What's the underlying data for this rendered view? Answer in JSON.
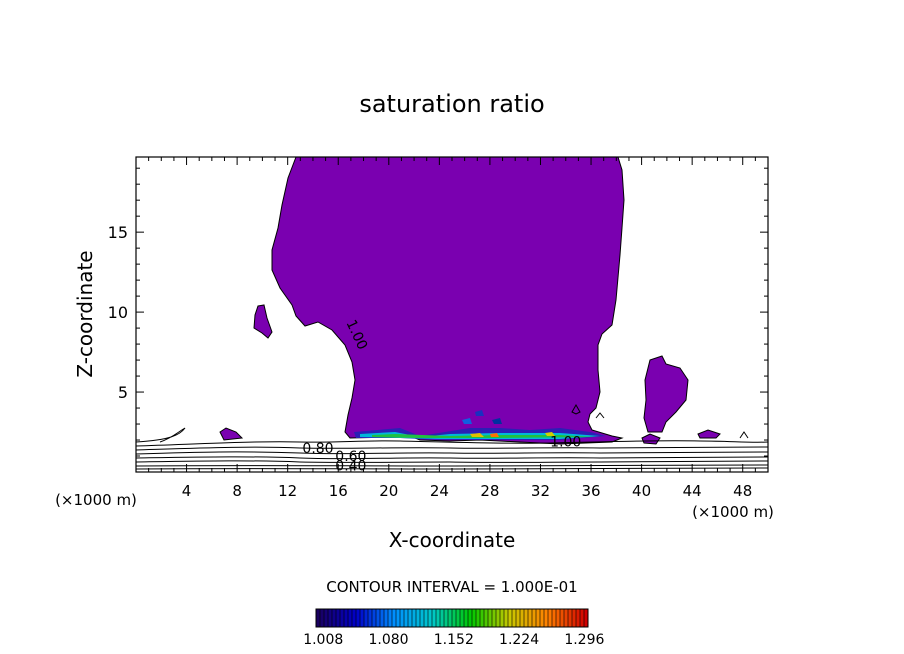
{
  "chart_data": {
    "type": "contour",
    "title": "saturation ratio",
    "xlabel": "X-coordinate",
    "ylabel": "Z-coordinate",
    "x_unit": "(×1000 m)",
    "y_unit": "(×1000 m)",
    "xlim": [
      0,
      50
    ],
    "ylim": [
      0,
      19.7
    ],
    "x_ticks": [
      4,
      8,
      12,
      16,
      20,
      24,
      28,
      32,
      36,
      40,
      44,
      48
    ],
    "y_ticks": [
      5,
      10,
      15
    ],
    "contour_labels": [
      {
        "value": "1.00",
        "x": 17.5,
        "z": 8.6
      },
      {
        "value": "0.80",
        "x": 14.4,
        "z": 1.5
      },
      {
        "value": "0.60",
        "x": 17.0,
        "z": 1.0
      },
      {
        "value": "0.40",
        "x": 17.0,
        "z": 0.4
      },
      {
        "value": "1.00",
        "x": 34.0,
        "z": 1.9
      }
    ],
    "contour_interval_label": "CONTOUR INTERVAL = 1.000E-01",
    "colorbar": {
      "tick_labels": [
        "1.008",
        "1.080",
        "1.152",
        "1.224",
        "1.296"
      ],
      "range": [
        1.0,
        1.3
      ],
      "colors": [
        "#1a0060",
        "#0000c8",
        "#0090ff",
        "#00c8c8",
        "#00c800",
        "#c8c800",
        "#ff8000",
        "#d00000"
      ]
    },
    "fill_color": "#7a00b0"
  }
}
